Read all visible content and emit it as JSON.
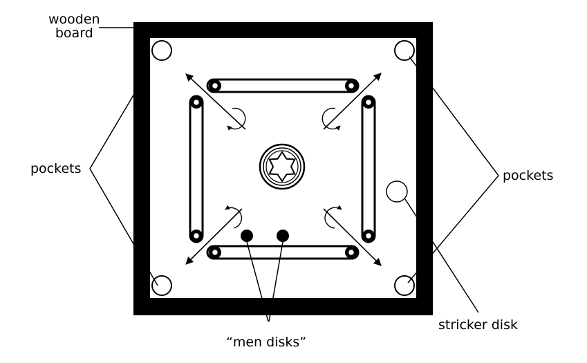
{
  "labels": {
    "wooden": "wooden",
    "board": "board",
    "pockets_left": "pockets",
    "pockets_right": "pockets",
    "stricker": "stricker disk",
    "men": "“men disks”"
  },
  "colors": {
    "ink": "#000000",
    "paper": "#ffffff"
  }
}
